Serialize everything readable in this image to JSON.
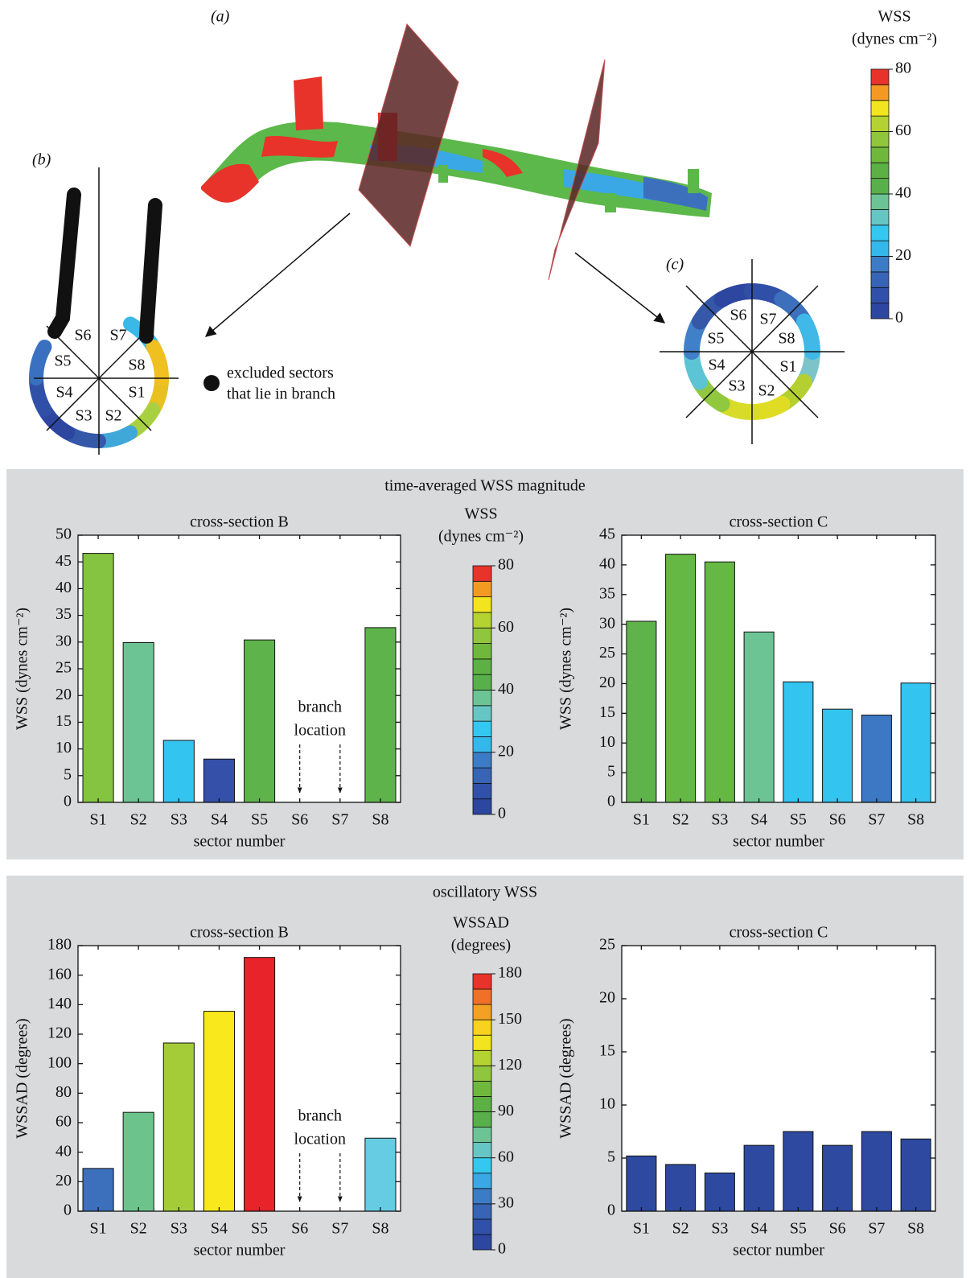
{
  "panel_labels": [
    "(a)",
    "(b)",
    "(c)"
  ],
  "illustration": {
    "b_sectors": [
      "S1",
      "S2",
      "S3",
      "S4",
      "S5",
      "S6",
      "S7",
      "S8"
    ],
    "c_sectors": [
      "S1",
      "S2",
      "S3",
      "S4",
      "S5",
      "S6",
      "S7",
      "S8"
    ],
    "legend": [
      "excluded sectors",
      "that lie in branch"
    ]
  },
  "colorbars": [
    {
      "title": "WSS",
      "unit": "(dynes cm⁻²)",
      "lim": [
        0,
        80
      ],
      "ticks": [
        0,
        20,
        40,
        60,
        80
      ],
      "colors": [
        "#2d46a0",
        "#3150aa",
        "#3864b6",
        "#3c7cc6",
        "#34b8ec",
        "#34c8f0",
        "#66c6c4",
        "#6cc494",
        "#58b04a",
        "#5cb044",
        "#70b83c",
        "#90c63c",
        "#b4d232",
        "#f2e41e",
        "#f49a22",
        "#e8332a"
      ]
    },
    {
      "title": "WSS",
      "unit": "(dynes cm⁻²)",
      "lim": [
        0,
        80
      ],
      "ticks": [
        0,
        20,
        40,
        60,
        80
      ],
      "colors": [
        "#2d46a0",
        "#3150aa",
        "#3864b6",
        "#3c7cc6",
        "#34b8ec",
        "#34c8f0",
        "#66c6c4",
        "#6cc494",
        "#58b04a",
        "#5cb044",
        "#70b83c",
        "#90c63c",
        "#b4d232",
        "#f2e41e",
        "#f49a22",
        "#e8332a"
      ]
    },
    {
      "title": "WSSAD",
      "unit": "(degrees)",
      "lim": [
        0,
        180
      ],
      "ticks": [
        0,
        30,
        60,
        90,
        120,
        150,
        180
      ],
      "colors": [
        "#2d46a0",
        "#3150aa",
        "#3864b6",
        "#3c7cc6",
        "#3aa8e4",
        "#34c8f0",
        "#66c6c4",
        "#6cc494",
        "#58b04a",
        "#5cb044",
        "#70b83c",
        "#90c63c",
        "#b4d232",
        "#f2e41e",
        "#f8d21e",
        "#f4a022",
        "#f07028",
        "#e8332a"
      ]
    }
  ],
  "panels": [
    {
      "title": "time-averaged WSS magnitude"
    },
    {
      "title": "oscillatory WSS"
    }
  ],
  "chart_data": [
    {
      "type": "bar",
      "title": "cross-section B",
      "categories": [
        "S1",
        "S2",
        "S3",
        "S4",
        "S5",
        "S6",
        "S7",
        "S8"
      ],
      "values": [
        46.6,
        29.9,
        11.6,
        8.1,
        30.4,
        null,
        null,
        32.7
      ],
      "colors": [
        "#84c440",
        "#6cc494",
        "#34c4f0",
        "#3550a8",
        "#5eb44a",
        null,
        null,
        "#5eb44a"
      ],
      "ylim": [
        0,
        50
      ],
      "yticks": [
        0,
        5,
        10,
        15,
        20,
        25,
        30,
        35,
        40,
        45,
        50
      ],
      "xlabel": "sector number",
      "ylabel": "WSS (dynes cm⁻²)",
      "annotation": [
        "branch",
        "location"
      ]
    },
    {
      "type": "bar",
      "title": "cross-section C",
      "categories": [
        "S1",
        "S2",
        "S3",
        "S4",
        "S5",
        "S6",
        "S7",
        "S8"
      ],
      "values": [
        30.5,
        41.8,
        40.5,
        28.7,
        20.3,
        15.7,
        14.7,
        20.1
      ],
      "colors": [
        "#5eb44a",
        "#66b844",
        "#66b844",
        "#6cc494",
        "#34c4f0",
        "#34c4f0",
        "#3c78c4",
        "#34c4f0"
      ],
      "ylim": [
        0,
        45
      ],
      "yticks": [
        0,
        5,
        10,
        15,
        20,
        25,
        30,
        35,
        40,
        45
      ],
      "xlabel": "sector number",
      "ylabel": "WSS (dynes cm⁻²)"
    },
    {
      "type": "bar",
      "title": "cross-section B",
      "categories": [
        "S1",
        "S2",
        "S3",
        "S4",
        "S5",
        "S6",
        "S7",
        "S8"
      ],
      "values": [
        29,
        67,
        114,
        135.5,
        172,
        null,
        null,
        49.5
      ],
      "colors": [
        "#3c70bc",
        "#6cc48c",
        "#a4cc38",
        "#f8e81c",
        "#e8232a",
        null,
        null,
        "#66cce4"
      ],
      "ylim": [
        0,
        180
      ],
      "yticks": [
        0,
        20,
        40,
        60,
        80,
        100,
        120,
        140,
        160,
        180
      ],
      "xlabel": "sector number",
      "ylabel": "WSSAD (degrees)",
      "annotation": [
        "branch",
        "location"
      ]
    },
    {
      "type": "bar",
      "title": "cross-section C",
      "categories": [
        "S1",
        "S2",
        "S3",
        "S4",
        "S5",
        "S6",
        "S7",
        "S8"
      ],
      "values": [
        5.2,
        4.4,
        3.6,
        6.2,
        7.5,
        6.2,
        7.5,
        6.8
      ],
      "colors": [
        "#2d4aa0",
        "#2d4aa0",
        "#2d4aa0",
        "#2d4aa0",
        "#2d4aa0",
        "#2d4aa0",
        "#2d4aa0",
        "#2d4aa0"
      ],
      "ylim": [
        0,
        25
      ],
      "yticks": [
        0,
        5,
        10,
        15,
        20,
        25
      ],
      "xlabel": "sector number",
      "ylabel": "WSSAD (degrees)"
    }
  ]
}
